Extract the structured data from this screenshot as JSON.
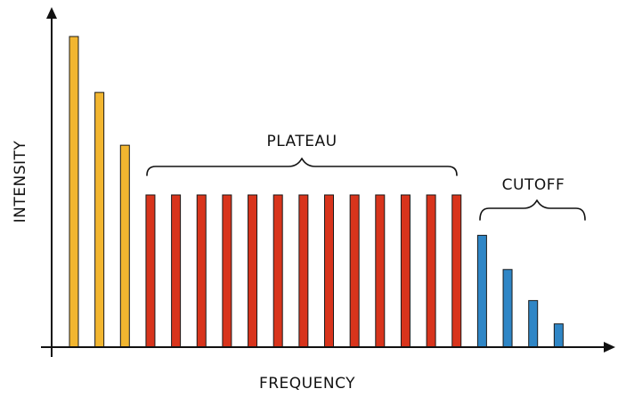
{
  "chart_data": {
    "type": "bar",
    "xlabel": "FREQUENCY",
    "ylabel": "INTENSITY",
    "ylim": [
      0,
      100
    ],
    "grid": false,
    "legend": "none",
    "values": [
      100,
      82,
      65,
      49,
      49,
      49,
      49,
      49,
      49,
      49,
      49,
      49,
      49,
      49,
      49,
      49,
      36,
      25,
      15,
      7.5
    ],
    "colors": {
      "yellow": "#f2b630",
      "red": "#d8341c",
      "blue": "#2f86c6",
      "axis": "#111111"
    },
    "groups": [
      {
        "key": "yellow",
        "color": "#f2b630",
        "label": "",
        "start": 0,
        "end": 2
      },
      {
        "key": "red",
        "color": "#d8341c",
        "label": "PLATEAU",
        "start": 3,
        "end": 15
      },
      {
        "key": "blue",
        "color": "#2f86c6",
        "label": "CUTOFF",
        "start": 16,
        "end": 19
      }
    ],
    "annotations": {
      "plateau": "PLATEAU",
      "cutoff": "CUTOFF"
    }
  }
}
